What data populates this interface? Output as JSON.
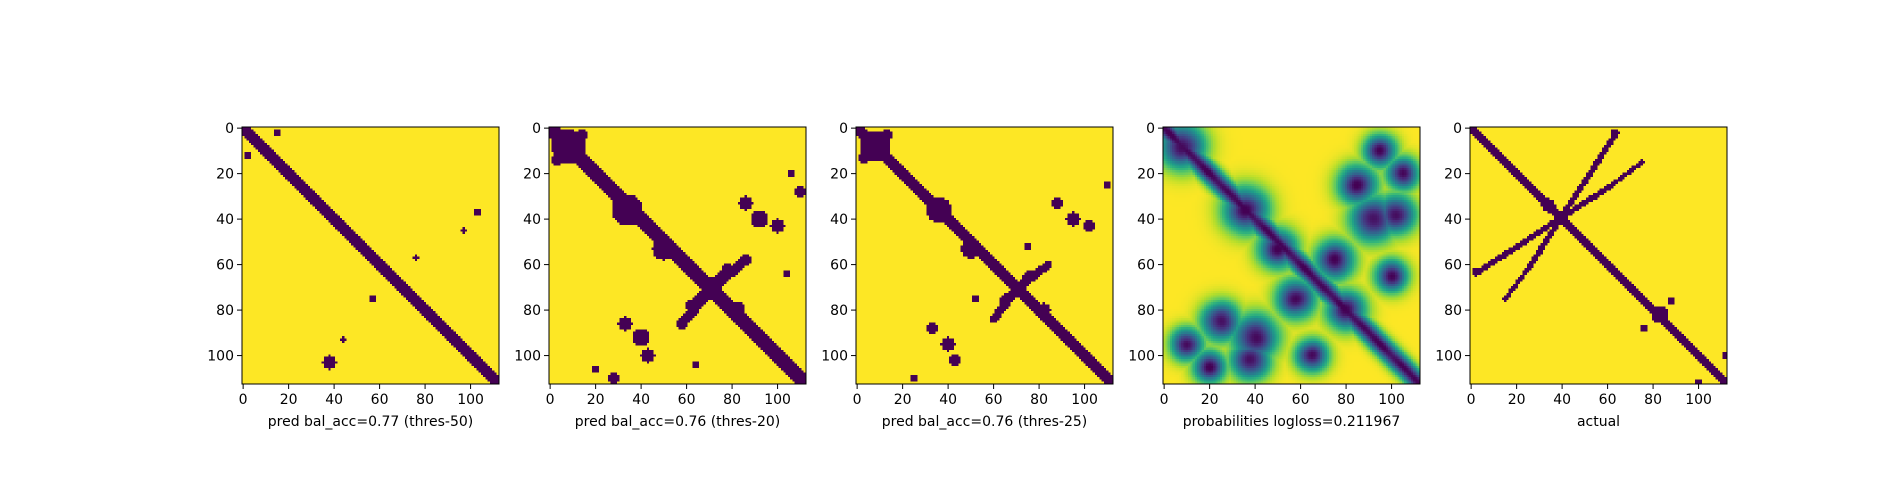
{
  "chart_data": [
    {
      "type": "heatmap",
      "xlabel": "pred bal_acc=0.77 (thres-50)",
      "size": 113,
      "xticks": [
        0,
        20,
        40,
        60,
        80,
        100
      ],
      "yticks": [
        0,
        20,
        40,
        60,
        80,
        100
      ],
      "xlim": [
        0,
        113
      ],
      "ylim": [
        113,
        0
      ],
      "binary": true,
      "diagonal_band_halfwidth": 1.8,
      "blobs": [
        {
          "x": 2,
          "y": 12,
          "r": 1.5
        },
        {
          "x": 4,
          "y": 3,
          "r": 1.2
        },
        {
          "x": 15,
          "y": 2,
          "r": 1.2
        },
        {
          "x": 103,
          "y": 37,
          "r": 1.5
        },
        {
          "x": 97,
          "y": 45,
          "r": 1.0
        },
        {
          "x": 76,
          "y": 57,
          "r": 1.0
        },
        {
          "x": 57,
          "y": 75,
          "r": 1.2
        },
        {
          "x": 38,
          "y": 103,
          "r": 2.5
        },
        {
          "x": 44,
          "y": 93,
          "r": 1.0
        }
      ],
      "color_low": "#440154",
      "color_high": "#fde725"
    },
    {
      "type": "heatmap",
      "xlabel": "pred bal_acc=0.76 (thres-20)",
      "size": 113,
      "xticks": [
        0,
        20,
        40,
        60,
        80,
        100
      ],
      "yticks": [
        0,
        20,
        40,
        60,
        80,
        100
      ],
      "xlim": [
        0,
        113
      ],
      "ylim": [
        113,
        0
      ],
      "binary": true,
      "diagonal_band_halfwidth": 2.5,
      "blobs": [
        {
          "x": 8,
          "y": 8,
          "r": 6
        },
        {
          "x": 3,
          "y": 14,
          "r": 2
        },
        {
          "x": 14,
          "y": 3,
          "r": 2
        },
        {
          "x": 34,
          "y": 36,
          "r": 5.5
        },
        {
          "x": 50,
          "y": 53,
          "r": 4
        },
        {
          "x": 82,
          "y": 80,
          "r": 3
        },
        {
          "x": 70,
          "y": 68,
          "r": 2
        },
        {
          "x": 92,
          "y": 40,
          "r": 3
        },
        {
          "x": 100,
          "y": 43,
          "r": 2.5
        },
        {
          "x": 86,
          "y": 33,
          "r": 2.5
        },
        {
          "x": 110,
          "y": 28,
          "r": 2
        },
        {
          "x": 106,
          "y": 20,
          "r": 1.5
        },
        {
          "x": 40,
          "y": 92,
          "r": 3
        },
        {
          "x": 43,
          "y": 100,
          "r": 2.5
        },
        {
          "x": 33,
          "y": 86,
          "r": 2.5
        },
        {
          "x": 28,
          "y": 110,
          "r": 2
        },
        {
          "x": 20,
          "y": 106,
          "r": 1.5
        },
        {
          "x": 64,
          "y": 104,
          "r": 1.5
        },
        {
          "x": 104,
          "y": 64,
          "r": 1.5
        }
      ],
      "antidiagonal": [
        {
          "x0": 58,
          "y0": 86,
          "x1": 78,
          "y1": 62,
          "r": 1.8
        },
        {
          "x0": 86,
          "y0": 58,
          "x1": 62,
          "y1": 78,
          "r": 1.8
        }
      ],
      "color_low": "#440154",
      "color_high": "#fde725"
    },
    {
      "type": "heatmap",
      "xlabel": "pred bal_acc=0.76 (thres-25)",
      "size": 113,
      "xticks": [
        0,
        20,
        40,
        60,
        80,
        100
      ],
      "yticks": [
        0,
        20,
        40,
        60,
        80,
        100
      ],
      "xlim": [
        0,
        113
      ],
      "ylim": [
        113,
        0
      ],
      "binary": true,
      "diagonal_band_halfwidth": 2.2,
      "blobs": [
        {
          "x": 8,
          "y": 8,
          "r": 5.5
        },
        {
          "x": 3,
          "y": 13,
          "r": 1.8
        },
        {
          "x": 13,
          "y": 3,
          "r": 1.8
        },
        {
          "x": 36,
          "y": 36,
          "r": 4.5
        },
        {
          "x": 50,
          "y": 53,
          "r": 3.5
        },
        {
          "x": 82,
          "y": 80,
          "r": 2.5
        },
        {
          "x": 95,
          "y": 40,
          "r": 2.5
        },
        {
          "x": 102,
          "y": 43,
          "r": 2
        },
        {
          "x": 88,
          "y": 33,
          "r": 2
        },
        {
          "x": 110,
          "y": 25,
          "r": 1.5
        },
        {
          "x": 40,
          "y": 95,
          "r": 2.5
        },
        {
          "x": 43,
          "y": 102,
          "r": 2
        },
        {
          "x": 33,
          "y": 88,
          "r": 2
        },
        {
          "x": 25,
          "y": 110,
          "r": 1.5
        },
        {
          "x": 75,
          "y": 52,
          "r": 1.5
        },
        {
          "x": 52,
          "y": 75,
          "r": 1.5
        }
      ],
      "antidiagonal": [
        {
          "x0": 60,
          "y0": 84,
          "x1": 76,
          "y1": 64,
          "r": 1.4
        },
        {
          "x0": 84,
          "y0": 60,
          "x1": 64,
          "y1": 76,
          "r": 1.4
        }
      ],
      "color_low": "#440154",
      "color_high": "#fde725"
    },
    {
      "type": "heatmap",
      "xlabel": "probabilities logloss=0.211967",
      "size": 113,
      "xticks": [
        0,
        20,
        40,
        60,
        80,
        100
      ],
      "yticks": [
        0,
        20,
        40,
        60,
        80,
        100
      ],
      "xlim": [
        0,
        113
      ],
      "ylim": [
        113,
        0
      ],
      "binary": false,
      "diagonal_band_halfwidth": 3.0,
      "blobs": [
        {
          "x": 8,
          "y": 8,
          "r": 7
        },
        {
          "x": 36,
          "y": 36,
          "r": 7
        },
        {
          "x": 50,
          "y": 53,
          "r": 6
        },
        {
          "x": 80,
          "y": 80,
          "r": 6
        },
        {
          "x": 92,
          "y": 40,
          "r": 7
        },
        {
          "x": 102,
          "y": 38,
          "r": 6
        },
        {
          "x": 85,
          "y": 25,
          "r": 6
        },
        {
          "x": 105,
          "y": 20,
          "r": 5
        },
        {
          "x": 75,
          "y": 58,
          "r": 6
        },
        {
          "x": 40,
          "y": 92,
          "r": 7
        },
        {
          "x": 38,
          "y": 102,
          "r": 6
        },
        {
          "x": 25,
          "y": 85,
          "r": 6
        },
        {
          "x": 20,
          "y": 105,
          "r": 5
        },
        {
          "x": 58,
          "y": 75,
          "r": 6
        },
        {
          "x": 65,
          "y": 100,
          "r": 5
        },
        {
          "x": 100,
          "y": 65,
          "r": 5
        },
        {
          "x": 10,
          "y": 95,
          "r": 5
        },
        {
          "x": 95,
          "y": 10,
          "r": 5
        }
      ],
      "color_low": "#440154",
      "color_high": "#fde725"
    },
    {
      "type": "heatmap",
      "xlabel": "actual",
      "size": 113,
      "xticks": [
        0,
        20,
        40,
        60,
        80,
        100
      ],
      "yticks": [
        0,
        20,
        40,
        60,
        80,
        100
      ],
      "xlim": [
        0,
        113
      ],
      "ylim": [
        113,
        0
      ],
      "binary": true,
      "diagonal_band_halfwidth": 1.6,
      "blobs": [
        {
          "x": 63,
          "y": 2,
          "r": 1.5
        },
        {
          "x": 2,
          "y": 63,
          "r": 1.5
        },
        {
          "x": 83,
          "y": 82,
          "r": 3
        },
        {
          "x": 88,
          "y": 76,
          "r": 1.5
        },
        {
          "x": 76,
          "y": 88,
          "r": 1.5
        },
        {
          "x": 112,
          "y": 100,
          "r": 1.5
        },
        {
          "x": 100,
          "y": 112,
          "r": 1.5
        },
        {
          "x": 34,
          "y": 34,
          "r": 2.5
        }
      ],
      "antidiagonal": [
        {
          "x0": 2,
          "y0": 64,
          "x1": 28,
          "y1": 47,
          "r": 1.0
        },
        {
          "x0": 28,
          "y0": 47,
          "x1": 62,
          "y1": 25,
          "r": 1.0
        },
        {
          "x0": 62,
          "y0": 25,
          "x1": 75,
          "y1": 15,
          "r": 0.8
        },
        {
          "x0": 64,
          "y0": 2,
          "x1": 47,
          "y1": 28,
          "r": 1.0
        },
        {
          "x0": 47,
          "y0": 28,
          "x1": 25,
          "y1": 62,
          "r": 1.0
        },
        {
          "x0": 25,
          "y0": 62,
          "x1": 15,
          "y1": 75,
          "r": 0.8
        }
      ],
      "color_low": "#440154",
      "color_high": "#fde725"
    }
  ]
}
